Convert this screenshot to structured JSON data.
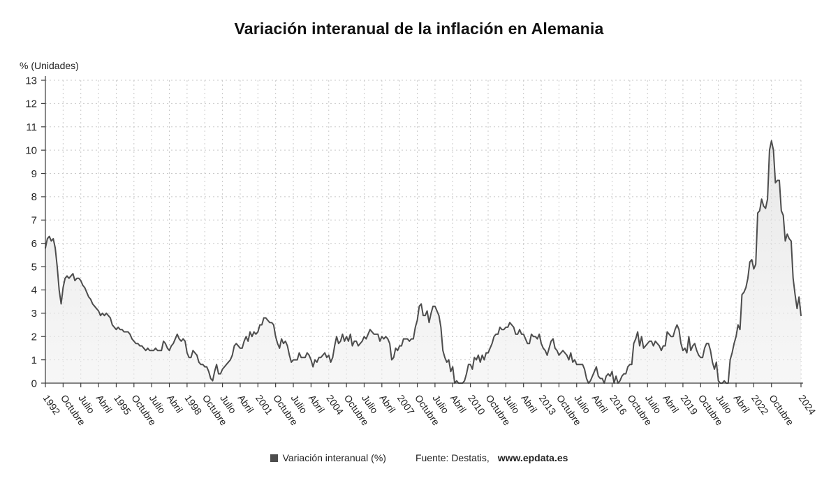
{
  "title": "Variación interanual de la inflación en Alemania",
  "y_axis_unit": "% (Unidades)",
  "legend": {
    "series_label": "Variación interanual (%)",
    "source_prefix": "Fuente: Destatis,",
    "source_site": "www.epdata.es"
  },
  "colors": {
    "line": "#4d4d4d",
    "fill_top": "#dcdcdc",
    "fill_bottom": "#f0f0f0",
    "grid": "#c8c8c8",
    "axis": "#3a3a3a",
    "text": "#222222",
    "swatch": "#4d4d4d"
  },
  "chart_data": {
    "type": "area",
    "title": "Variación interanual de la inflación en Alemania",
    "xlabel": "",
    "ylabel": "% (Unidades)",
    "ylim": [
      0,
      13
    ],
    "y_tick_step": 1,
    "grid": "dashed",
    "legend_position": "bottom",
    "x_start": "1992-01",
    "x_end": "2024-01",
    "frequency": "monthly",
    "x_tick_step_months": 9,
    "x_tick_labels": [
      "1992",
      "Octubre",
      "Julio",
      "Abril",
      "1995",
      "Octubre",
      "Julio",
      "Abril",
      "1998",
      "Octubre",
      "Julio",
      "Abril",
      "2001",
      "Octubre",
      "Julio",
      "Abril",
      "2004",
      "Octubre",
      "Julio",
      "Abril",
      "2007",
      "Octubre",
      "Julio",
      "Abril",
      "2010",
      "Octubre",
      "Julio",
      "Abril",
      "2013",
      "Octubre",
      "Julio",
      "Abril",
      "2016",
      "Octubre",
      "Julio",
      "Abril",
      "2019",
      "Octubre",
      "Julio",
      "Abril",
      "2022",
      "Octubre",
      "2024"
    ],
    "series": [
      {
        "name": "Variación interanual (%)",
        "values": [
          5.8,
          6.2,
          6.3,
          6.1,
          6.2,
          5.8,
          5.0,
          4.0,
          3.4,
          4.1,
          4.5,
          4.6,
          4.5,
          4.6,
          4.7,
          4.4,
          4.5,
          4.5,
          4.4,
          4.2,
          4.1,
          3.9,
          3.7,
          3.6,
          3.4,
          3.3,
          3.2,
          3.1,
          2.9,
          3.0,
          2.9,
          3.0,
          2.9,
          2.8,
          2.5,
          2.4,
          2.3,
          2.4,
          2.3,
          2.3,
          2.2,
          2.2,
          2.2,
          2.1,
          1.9,
          1.8,
          1.7,
          1.7,
          1.6,
          1.6,
          1.5,
          1.4,
          1.5,
          1.4,
          1.4,
          1.4,
          1.5,
          1.4,
          1.4,
          1.4,
          1.8,
          1.7,
          1.5,
          1.4,
          1.6,
          1.7,
          1.9,
          2.1,
          1.9,
          1.8,
          1.9,
          1.8,
          1.3,
          1.1,
          1.1,
          1.4,
          1.3,
          1.2,
          0.9,
          0.8,
          0.8,
          0.7,
          0.7,
          0.5,
          0.2,
          0.1,
          0.5,
          0.8,
          0.4,
          0.4,
          0.6,
          0.7,
          0.8,
          0.9,
          1.0,
          1.2,
          1.6,
          1.7,
          1.6,
          1.5,
          1.5,
          1.8,
          2.0,
          1.8,
          2.2,
          2.0,
          2.2,
          2.1,
          2.2,
          2.5,
          2.5,
          2.8,
          2.8,
          2.7,
          2.6,
          2.6,
          2.5,
          2.0,
          1.7,
          1.5,
          1.9,
          1.7,
          1.8,
          1.6,
          1.2,
          0.9,
          1.0,
          1.0,
          1.0,
          1.3,
          1.1,
          1.1,
          1.1,
          1.3,
          1.2,
          1.0,
          0.7,
          1.0,
          0.9,
          1.1,
          1.1,
          1.2,
          1.3,
          1.1,
          1.2,
          0.9,
          1.1,
          1.6,
          2.0,
          1.7,
          1.8,
          2.1,
          1.8,
          2.0,
          1.8,
          2.1,
          1.6,
          1.8,
          1.8,
          1.6,
          1.7,
          1.8,
          2.0,
          1.9,
          2.1,
          2.3,
          2.2,
          2.1,
          2.1,
          2.1,
          1.8,
          2.0,
          1.9,
          2.0,
          1.9,
          1.7,
          1.0,
          1.1,
          1.5,
          1.4,
          1.6,
          1.6,
          1.9,
          1.9,
          1.9,
          1.8,
          1.9,
          1.9,
          2.4,
          2.7,
          3.3,
          3.4,
          2.9,
          2.9,
          3.1,
          2.6,
          3.0,
          3.3,
          3.3,
          3.1,
          2.9,
          2.4,
          1.4,
          1.1,
          0.9,
          1.0,
          0.5,
          0.7,
          0.0,
          0.1,
          0.0,
          0.0,
          0.0,
          0.1,
          0.4,
          0.8,
          0.8,
          0.6,
          1.1,
          1.0,
          1.2,
          0.9,
          1.2,
          1.0,
          1.3,
          1.3,
          1.5,
          1.7,
          2.0,
          2.1,
          2.1,
          2.4,
          2.3,
          2.3,
          2.4,
          2.4,
          2.6,
          2.5,
          2.4,
          2.1,
          2.1,
          2.3,
          2.1,
          2.1,
          1.9,
          1.7,
          1.7,
          2.1,
          2.0,
          2.0,
          1.9,
          2.1,
          1.7,
          1.5,
          1.4,
          1.2,
          1.5,
          1.8,
          1.9,
          1.5,
          1.4,
          1.2,
          1.3,
          1.4,
          1.3,
          1.2,
          1.0,
          1.3,
          0.9,
          1.0,
          0.8,
          0.8,
          0.8,
          0.8,
          0.6,
          0.2,
          0.0,
          0.1,
          0.3,
          0.5,
          0.7,
          0.3,
          0.2,
          0.2,
          0.0,
          0.3,
          0.4,
          0.3,
          0.5,
          0.0,
          0.3,
          0.0,
          0.1,
          0.3,
          0.4,
          0.4,
          0.7,
          0.8,
          0.8,
          1.7,
          1.9,
          2.2,
          1.6,
          2.0,
          1.5,
          1.6,
          1.7,
          1.8,
          1.8,
          1.6,
          1.8,
          1.7,
          1.6,
          1.4,
          1.6,
          1.6,
          2.2,
          2.1,
          2.0,
          2.0,
          2.3,
          2.5,
          2.3,
          1.7,
          1.4,
          1.5,
          1.3,
          2.0,
          1.4,
          1.6,
          1.7,
          1.4,
          1.2,
          1.1,
          1.1,
          1.5,
          1.7,
          1.7,
          1.4,
          0.9,
          0.6,
          0.9,
          0.1,
          0.0,
          0.0,
          0.1,
          0.0,
          0.0,
          1.0,
          1.3,
          1.7,
          2.0,
          2.5,
          2.3,
          3.8,
          3.9,
          4.1,
          4.5,
          5.2,
          5.3,
          4.9,
          5.1,
          7.3,
          7.4,
          7.9,
          7.6,
          7.5,
          7.9,
          10.0,
          10.4,
          10.0,
          8.6,
          8.7,
          8.7,
          7.4,
          7.2,
          6.1,
          6.4,
          6.2,
          6.1,
          4.5,
          3.8,
          3.2,
          3.7,
          2.9
        ]
      }
    ]
  }
}
